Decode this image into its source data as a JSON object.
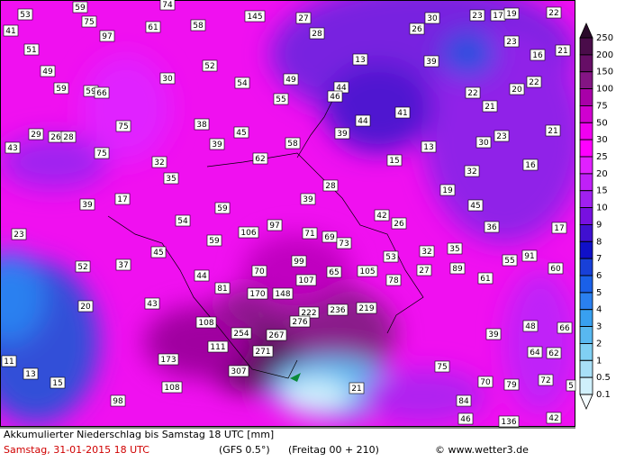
{
  "map": {
    "labels": [
      53,
      59,
      74,
      41,
      75,
      61,
      58,
      145,
      27,
      28,
      30,
      23,
      17,
      19,
      22,
      97,
      26,
      51,
      52,
      13,
      39,
      23,
      16,
      21,
      49,
      30,
      54,
      44,
      49,
      22,
      20,
      22,
      59,
      59,
      66,
      55,
      46,
      21,
      41,
      44,
      75,
      38,
      45,
      39,
      29,
      26,
      28,
      23,
      30,
      21,
      43,
      39,
      58,
      13,
      75,
      32,
      62,
      15,
      16,
      35,
      28,
      32,
      19,
      17,
      39,
      39,
      45,
      59,
      42,
      26,
      54,
      97,
      36,
      17,
      23,
      106,
      71,
      69,
      73,
      59,
      45,
      53,
      32,
      35,
      91,
      55,
      52,
      37,
      99,
      70,
      65,
      105,
      27,
      89,
      60,
      44,
      107,
      78,
      61,
      81,
      170,
      148,
      43,
      20,
      222,
      236,
      219,
      276,
      108,
      48,
      66,
      254,
      267,
      39,
      111,
      271,
      64,
      62,
      173,
      11,
      307,
      75,
      13,
      15,
      108,
      21,
      70,
      79,
      72,
      5,
      98,
      84,
      46,
      136,
      42
    ],
    "legend": {
      "levels": [
        250,
        200,
        150,
        100,
        75,
        50,
        30,
        25,
        20,
        15,
        10,
        9,
        8,
        7,
        6,
        5,
        4,
        3,
        2,
        1,
        0.5,
        0.1
      ],
      "colors": [
        "#2a0a2a",
        "#4a0c4a",
        "#660e66",
        "#841584",
        "#a800a8",
        "#d000d0",
        "#f000f0",
        "#ff00ff",
        "#e020ff",
        "#c020f8",
        "#a020f0",
        "#7810e0",
        "#4010d0",
        "#1010c8",
        "#1840d8",
        "#1a60e8",
        "#2a80f0",
        "#38a0f0",
        "#58b8f0",
        "#80d0f4",
        "#a8e0f8",
        "#d0f0fc",
        "#f4fcff"
      ]
    },
    "footer": {
      "title": "Akkumulierter Niederschlag bis Samstag 18 UTC [mm]",
      "date": "Samstag, 31-01-2015  18 UTC",
      "model": "(GFS 0.5°)",
      "run": "(Freitag 00 + 210)",
      "credit": "© www.wetter3.de"
    }
  }
}
